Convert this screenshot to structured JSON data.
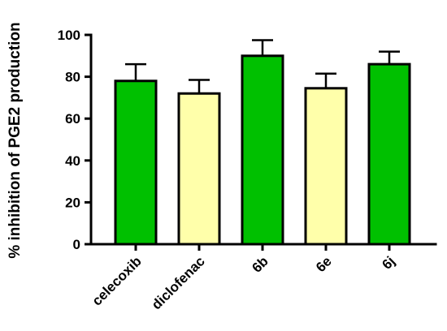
{
  "chart_data": {
    "type": "bar",
    "ylabel": "% inhibition of PGE2 production",
    "xlabel": "",
    "ylim": [
      0,
      100
    ],
    "yticks": [
      0,
      20,
      40,
      60,
      80,
      100
    ],
    "categories": [
      "celecoxib",
      "diclofenac",
      "6b",
      "6e",
      "6j"
    ],
    "values": [
      78,
      72,
      90,
      74.5,
      86
    ],
    "errors": [
      8,
      6.5,
      7.5,
      7,
      6
    ],
    "colors": [
      "#00c000",
      "#ffffaa",
      "#00c000",
      "#ffffaa",
      "#00c000"
    ],
    "grid": false
  }
}
